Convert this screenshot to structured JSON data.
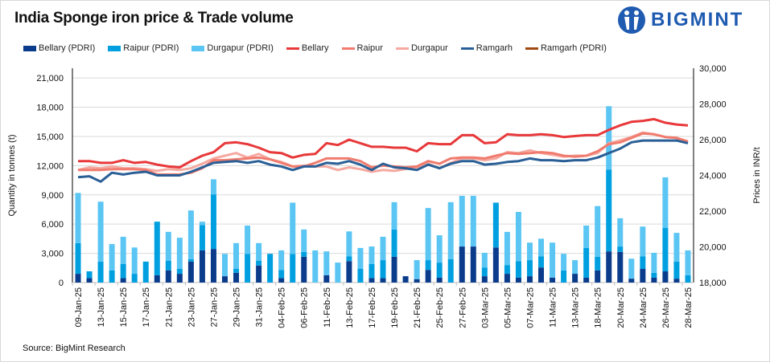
{
  "chart_data": {
    "type": "bar+line",
    "title": "India Sponge iron price & Trade volume",
    "ylabel": "Quantity in tonnes (t)",
    "y2label": "Prices in INR/t",
    "ylim": [
      0,
      22000
    ],
    "yticks": [
      0,
      3000,
      6000,
      9000,
      12000,
      15000,
      18000,
      21000
    ],
    "ytick_labels": [
      "0",
      "3,000",
      "6,000",
      "9,000",
      "12,000",
      "15,000",
      "18,000",
      "21,000"
    ],
    "y2lim": [
      18000,
      30000
    ],
    "y2ticks": [
      18000,
      20000,
      22000,
      24000,
      26000,
      28000,
      30000
    ],
    "y2tick_labels": [
      "18,000",
      "20,000",
      "22,000",
      "24,000",
      "26,000",
      "28,000",
      "30,000"
    ],
    "grid": true,
    "legend_position": "top",
    "categories": [
      "09-Jan-25",
      "",
      "13-Jan-25",
      "",
      "15-Jan-25",
      "",
      "17-Jan-25",
      "",
      "21-Jan-25",
      "",
      "23-Jan-25",
      "",
      "27-Jan-25",
      "",
      "29-Jan-25",
      "",
      "31-Jan-25",
      "",
      "04-Feb-25",
      "",
      "06-Feb-25",
      "",
      "11-Feb-25",
      "",
      "13-Feb-25",
      "",
      "17-Feb-25",
      "",
      "19-Feb-25",
      "",
      "21-Feb-25",
      "",
      "25-Feb-25",
      "",
      "27-Feb-25",
      "",
      "03-Mar-25",
      "",
      "05-Mar-25",
      "",
      "07-Mar-25",
      "",
      "11-Mar-25",
      "",
      "13-Mar-25",
      "",
      "18-Mar-25",
      "",
      "20-Mar-25",
      "",
      "24-Mar-25",
      "",
      "26-Mar-25",
      "",
      "28-Mar-25"
    ],
    "bar_series": [
      {
        "name": "Bellary (PDRI)",
        "color": "#0b3c8c",
        "values": [
          900,
          450,
          0,
          0,
          450,
          0,
          0,
          750,
          1250,
          900,
          2150,
          3300,
          3450,
          650,
          1000,
          0,
          1750,
          0,
          450,
          0,
          2650,
          0,
          750,
          0,
          2200,
          0,
          450,
          450,
          2650,
          650,
          350,
          1300,
          500,
          0,
          3700,
          3700,
          650,
          3600,
          900,
          500,
          650,
          1550,
          500,
          0,
          900,
          500,
          1250,
          3200,
          3150,
          400,
          1400,
          500,
          1150,
          400,
          0
        ]
      },
      {
        "name": "Raipur (PDRI)",
        "color": "#00a0e0",
        "values": [
          3150,
          700,
          2150,
          1250,
          1450,
          900,
          2150,
          5500,
          1000,
          500,
          250,
          2600,
          5600,
          0,
          400,
          2950,
          500,
          2950,
          850,
          2950,
          500,
          0,
          0,
          0,
          500,
          1400,
          1450,
          1850,
          2800,
          0,
          0,
          1000,
          1550,
          2400,
          0,
          0,
          900,
          4600,
          900,
          1700,
          1650,
          1150,
          0,
          1250,
          0,
          3050,
          1400,
          8400,
          550,
          0,
          1300,
          500,
          4450,
          1750,
          750
        ]
      },
      {
        "name": "Durgapur (PDRI)",
        "color": "#5bc6f3",
        "values": [
          5150,
          0,
          6150,
          2700,
          2800,
          2700,
          0,
          0,
          2950,
          3200,
          5000,
          350,
          1550,
          2300,
          2650,
          2900,
          1800,
          0,
          2000,
          5250,
          2300,
          3300,
          2450,
          2050,
          2550,
          2150,
          1800,
          2400,
          2800,
          0,
          1950,
          5350,
          2800,
          5850,
          5200,
          5200,
          1500,
          0,
          3400,
          5050,
          1800,
          1800,
          3600,
          1700,
          1400,
          2300,
          5200,
          6500,
          2900,
          2050,
          3050,
          2050,
          5200,
          2950,
          2550
        ]
      }
    ],
    "line_series": [
      {
        "name": "Bellary",
        "color": "#e8383a",
        "values": [
          24800,
          24800,
          24700,
          24700,
          24850,
          24700,
          24750,
          24600,
          24500,
          24450,
          24800,
          25100,
          25300,
          25800,
          25850,
          25750,
          25550,
          25300,
          25250,
          25000,
          25150,
          25200,
          25800,
          25700,
          26000,
          25800,
          25600,
          25600,
          25550,
          25550,
          25350,
          25800,
          25750,
          25750,
          26250,
          26250,
          25800,
          25850,
          26300,
          26250,
          26250,
          26300,
          26250,
          26150,
          26200,
          26250,
          26250,
          26550,
          26800,
          27000,
          27050,
          27150,
          26950,
          26850,
          26800
        ]
      },
      {
        "name": "Raipur",
        "color": "#f07b6e",
        "values": [
          24300,
          24300,
          24300,
          24350,
          24350,
          24350,
          24300,
          24050,
          24050,
          24050,
          24150,
          24400,
          24850,
          24850,
          24900,
          24950,
          25000,
          24900,
          24700,
          24500,
          24500,
          24700,
          24950,
          24950,
          24950,
          24800,
          24450,
          24550,
          24500,
          24450,
          24500,
          24800,
          24650,
          24950,
          25000,
          25000,
          24950,
          25100,
          25250,
          25200,
          25250,
          25300,
          25250,
          25100,
          25050,
          25100,
          25350,
          25750,
          25850,
          26100,
          26350,
          26300,
          26150,
          26100,
          25900
        ]
      },
      {
        "name": "Durgapur",
        "color": "#f5a9a0",
        "values": [
          24300,
          24450,
          24400,
          24500,
          24400,
          24400,
          24350,
          24250,
          24350,
          24300,
          24400,
          24650,
          24950,
          25100,
          25250,
          25000,
          25200,
          24900,
          24750,
          24500,
          24550,
          24500,
          24500,
          24300,
          24450,
          24350,
          24200,
          24300,
          24250,
          24350,
          24450,
          24650,
          24400,
          24700,
          24950,
          24950,
          24850,
          24950,
          25300,
          25250,
          25400,
          25250,
          25150,
          25050,
          25100,
          25100,
          25250,
          25800,
          25950,
          26150,
          26400,
          26300,
          26150,
          26100,
          25850
        ]
      },
      {
        "name": "Ramgarh",
        "color": "#2a5f96",
        "values": [
          23900,
          23950,
          23650,
          24150,
          24050,
          24150,
          24200,
          24000,
          24000,
          24000,
          24200,
          24450,
          24700,
          24750,
          24800,
          24700,
          24800,
          24600,
          24500,
          24300,
          24500,
          24500,
          24700,
          24650,
          24800,
          24600,
          24300,
          24650,
          24450,
          24400,
          24300,
          24600,
          24400,
          24650,
          24800,
          24800,
          24600,
          24650,
          24750,
          24800,
          24950,
          24850,
          24850,
          24800,
          24850,
          24850,
          25000,
          25250,
          25500,
          25850,
          25950,
          25950,
          25950,
          25950,
          25800
        ]
      },
      {
        "name": "Ramgarh (PDRI)",
        "color": "#a0490f",
        "values": []
      }
    ]
  },
  "logo": {
    "text": "BIGMINT",
    "color": "#1f5bb0"
  },
  "source": "Source: BigMint Research"
}
